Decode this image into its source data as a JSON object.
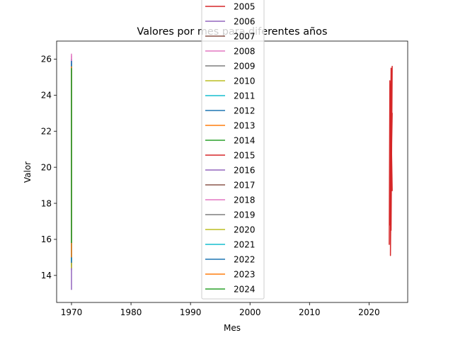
{
  "chart_data": {
    "type": "line",
    "title": "Valores por mes para diferentes años",
    "xlabel": "Mes",
    "ylabel": "Valor",
    "xlim": [
      1967.5,
      2026.5
    ],
    "ylim": [
      12.5,
      27.0
    ],
    "xticks": [
      1970,
      1980,
      1990,
      2000,
      2010,
      2020
    ],
    "xtick_labels": [
      "1970",
      "1980",
      "1990",
      "2000",
      "2010",
      "2020"
    ],
    "yticks": [
      14,
      16,
      18,
      20,
      22,
      24,
      26
    ],
    "ytick_labels": [
      "14",
      "16",
      "18",
      "20",
      "22",
      "24",
      "26"
    ],
    "grid": false,
    "legend": "top-center, overlapping title and plot",
    "series": [
      {
        "name": "2005",
        "color": "#d62728",
        "x": [
          1970,
          1970
        ],
        "y": [
          15.0,
          25.5
        ]
      },
      {
        "name": "2006",
        "color": "#9467bd",
        "x": [
          1970,
          1970
        ],
        "y": [
          13.2,
          25.0
        ]
      },
      {
        "name": "2007",
        "color": "#8c564b",
        "x": [
          1970,
          1970
        ],
        "y": [
          15.0,
          25.0
        ]
      },
      {
        "name": "2008",
        "color": "#e377c2",
        "x": [
          1970,
          1970
        ],
        "y": [
          15.2,
          26.3
        ]
      },
      {
        "name": "2009",
        "color": "#7f7f7f",
        "x": [
          1970,
          1970
        ],
        "y": [
          14.8,
          25.6
        ]
      },
      {
        "name": "2010",
        "color": "#bcbd22",
        "x": [
          1970,
          1970
        ],
        "y": [
          14.5,
          25.4
        ]
      },
      {
        "name": "2011",
        "color": "#17becf",
        "x": [
          1970,
          1970
        ],
        "y": [
          14.6,
          25.8
        ]
      },
      {
        "name": "2012",
        "color": "#1f77b4",
        "x": [
          1970,
          1970
        ],
        "y": [
          14.9,
          26.0
        ]
      },
      {
        "name": "2013",
        "color": "#ff7f0e",
        "x": [
          1970,
          1970
        ],
        "y": [
          15.1,
          25.5
        ]
      },
      {
        "name": "2014",
        "color": "#2ca02c",
        "x": [
          1970,
          1970
        ],
        "y": [
          15.9,
          25.5
        ]
      },
      {
        "name": "2015",
        "color": "#d62728",
        "x": [
          1970,
          1970
        ],
        "y": [
          15.5,
          25.0
        ]
      },
      {
        "name": "2016",
        "color": "#9467bd",
        "x": [
          1970,
          1970
        ],
        "y": [
          14.3,
          25.0
        ]
      },
      {
        "name": "2017",
        "color": "#8c564b",
        "x": [
          1970,
          1970
        ],
        "y": [
          15.0,
          25.2
        ]
      },
      {
        "name": "2018",
        "color": "#e377c2",
        "x": [
          1970,
          1970
        ],
        "y": [
          15.1,
          26.2
        ]
      },
      {
        "name": "2019",
        "color": "#7f7f7f",
        "x": [
          1970,
          1970
        ],
        "y": [
          15.0,
          25.4
        ]
      },
      {
        "name": "2020",
        "color": "#bcbd22",
        "x": [
          1970,
          1970
        ],
        "y": [
          14.4,
          25.2
        ]
      },
      {
        "name": "2021",
        "color": "#17becf",
        "x": [
          1970,
          1970
        ],
        "y": [
          14.8,
          25.7
        ]
      },
      {
        "name": "2022",
        "color": "#1f77b4",
        "x": [
          1970,
          1970
        ],
        "y": [
          14.7,
          25.9
        ]
      },
      {
        "name": "2023",
        "color": "#ff7f0e",
        "x": [
          1970,
          1970
        ],
        "y": [
          15.0,
          25.6
        ]
      },
      {
        "name": "2024",
        "color": "#2ca02c",
        "x": [
          1970,
          1970
        ],
        "y": [
          15.8,
          25.5
        ]
      },
      {
        "name": "",
        "color": "#d62728",
        "x": [
          2023.4,
          2023.5,
          2023.6,
          2023.7,
          2023.6,
          2023.8,
          2023.5,
          2023.9,
          2023.7,
          2023.6,
          2023.8,
          2023.5,
          2023.9,
          2023.6,
          2023.7,
          2023.5,
          2023.8,
          2023.6,
          2023.9,
          2023.7
        ],
        "y": [
          15.7,
          24.8,
          17.0,
          25.5,
          15.1,
          22.5,
          18.5,
          25.6,
          16.5,
          24.0,
          20.5,
          19.0,
          23.0,
          17.5,
          25.4,
          16.8,
          21.0,
          24.6,
          18.7,
          22.0
        ]
      }
    ]
  }
}
